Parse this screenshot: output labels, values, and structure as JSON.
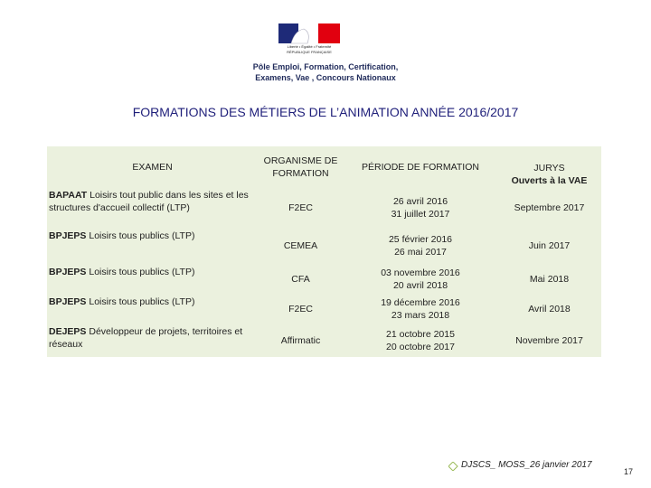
{
  "header": {
    "logo_lines": [
      "Liberté • Égalité • Fraternité",
      "RÉPUBLIQUE FRANÇAISE"
    ],
    "org_lines": [
      "Pôle Emploi, Formation, Certification,",
      "Examens, Vae , Concours Nationaux"
    ]
  },
  "title": "FORMATIONS DES MÉTIERS DE L’ANIMATION ANNÉE 2016/2017",
  "table": {
    "columns": [
      [
        "EXAMEN"
      ],
      [
        "ORGANISME DE",
        "FORMATION"
      ],
      [
        "PÉRIODE DE FORMATION"
      ],
      [
        "JURYS",
        "Ouverts à la VAE"
      ]
    ],
    "rows": [
      {
        "diploma": "BAPAAT",
        "label": " Loisirs tout public dans les sites et les structures d'accueil collectif (LTP)",
        "organism": "F2EC",
        "period": [
          "26 avril 2016",
          "31 juillet 2017"
        ],
        "jury": "Septembre 2017"
      },
      {
        "diploma": "BPJEPS",
        "label": " Loisirs tous publics (LTP)",
        "organism": "CEMEA",
        "period": [
          "25 février 2016",
          "26 mai 2017"
        ],
        "jury": "Juin 2017"
      },
      {
        "diploma": "BPJEPS",
        "label": " Loisirs tous publics (LTP)",
        "organism": "CFA",
        "period": [
          "03 novembre 2016",
          "20 avril 2018"
        ],
        "jury": "Mai 2018"
      },
      {
        "diploma": "BPJEPS",
        "label": " Loisirs tous publics (LTP)",
        "organism": "F2EC",
        "period": [
          "19 décembre 2016",
          "23 mars 2018"
        ],
        "jury": "Avril 2018"
      },
      {
        "diploma": "DEJEPS",
        "label": " Développeur de projets, territoires et réseaux",
        "organism": "Affirmatic",
        "period": [
          "21 octobre 2015",
          "20 octobre 2017"
        ],
        "jury": "Novembre 2017"
      }
    ]
  },
  "footer": {
    "ref": "DJSCS_ MOSS_26 janvier 2017",
    "page": "17"
  }
}
